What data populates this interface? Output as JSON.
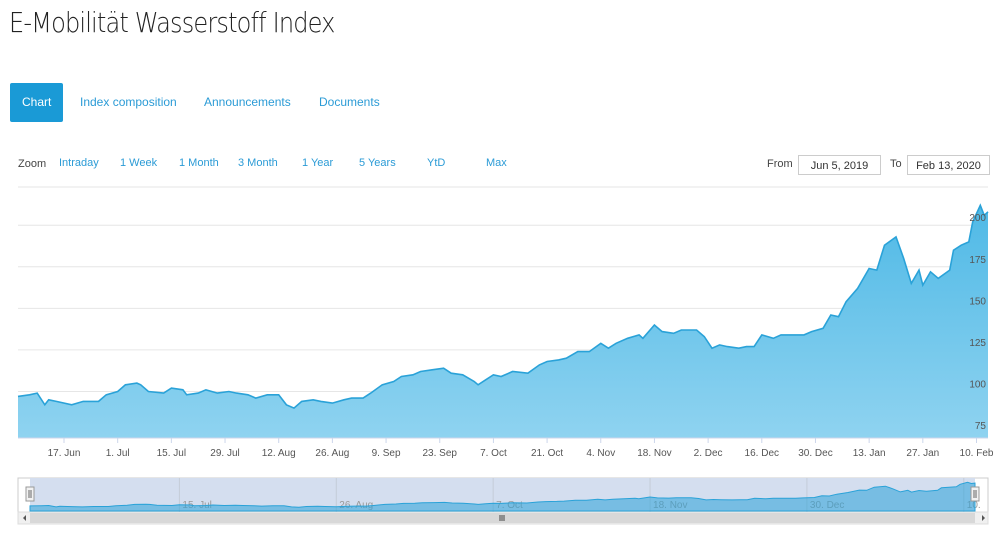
{
  "header": {
    "title": "E-Mobilität Wasserstoff Index"
  },
  "tabs": {
    "items": [
      "Chart",
      "Index composition",
      "Announcements",
      "Documents"
    ],
    "active": 0
  },
  "zoom": {
    "label": "Zoom",
    "options": [
      "Intraday",
      "1 Week",
      "1 Month",
      "3 Month",
      "1 Year",
      "5 Years",
      "YtD",
      "Max"
    ]
  },
  "range": {
    "from_label": "From",
    "from": "Jun 5, 2019",
    "to_label": "To",
    "to": "Feb 13, 2020"
  },
  "chart_data": {
    "type": "area",
    "color": "#2aa2d8",
    "grid": true,
    "x": [
      "2019-06-05",
      "2019-06-08",
      "2019-06-10",
      "2019-06-12",
      "2019-06-13",
      "2019-06-15",
      "2019-06-19",
      "2019-06-22",
      "2019-06-26",
      "2019-06-28",
      "2019-07-01",
      "2019-07-03",
      "2019-07-06",
      "2019-07-07",
      "2019-07-09",
      "2019-07-13",
      "2019-07-15",
      "2019-07-18",
      "2019-07-19",
      "2019-07-22",
      "2019-07-24",
      "2019-07-27",
      "2019-07-30",
      "2019-08-01",
      "2019-08-04",
      "2019-08-06",
      "2019-08-09",
      "2019-08-12",
      "2019-08-14",
      "2019-08-16",
      "2019-08-18",
      "2019-08-21",
      "2019-08-23",
      "2019-08-26",
      "2019-08-29",
      "2019-08-31",
      "2019-09-03",
      "2019-09-05",
      "2019-09-08",
      "2019-09-11",
      "2019-09-13",
      "2019-09-16",
      "2019-09-18",
      "2019-09-21",
      "2019-09-24",
      "2019-09-26",
      "2019-09-29",
      "2019-10-02",
      "2019-10-03",
      "2019-10-05",
      "2019-10-07",
      "2019-10-09",
      "2019-10-12",
      "2019-10-16",
      "2019-10-19",
      "2019-10-21",
      "2019-10-24",
      "2019-10-26",
      "2019-10-29",
      "2019-11-01",
      "2019-11-04",
      "2019-11-06",
      "2019-11-08",
      "2019-11-11",
      "2019-11-14",
      "2019-11-15",
      "2019-11-18",
      "2019-11-20",
      "2019-11-23",
      "2019-11-25",
      "2019-11-29",
      "2019-12-01",
      "2019-12-03",
      "2019-12-05",
      "2019-12-07",
      "2019-12-10",
      "2019-12-12",
      "2019-12-14",
      "2019-12-16",
      "2019-12-19",
      "2019-12-21",
      "2019-12-24",
      "2019-12-27",
      "2019-12-29",
      "2020-01-01",
      "2020-01-03",
      "2020-01-05",
      "2020-01-07",
      "2020-01-10",
      "2020-01-13",
      "2020-01-15",
      "2020-01-17",
      "2020-01-20",
      "2020-01-22",
      "2020-01-24",
      "2020-01-26",
      "2020-01-27",
      "2020-01-29",
      "2020-01-31",
      "2020-02-03",
      "2020-02-04",
      "2020-02-06",
      "2020-02-08",
      "2020-02-09",
      "2020-02-11",
      "2020-02-12",
      "2020-02-13"
    ],
    "values": [
      97,
      98,
      99,
      92,
      95,
      94,
      92,
      94,
      94,
      98,
      100,
      104,
      105,
      104,
      100,
      99,
      102,
      101,
      98,
      99,
      101,
      99,
      100,
      99,
      98,
      96,
      98,
      98,
      92,
      90,
      94,
      95,
      94,
      93,
      95,
      96,
      96,
      99,
      104,
      106,
      109,
      110,
      112,
      113,
      114,
      111,
      110,
      106,
      104,
      107,
      110,
      109,
      112,
      111,
      116,
      118,
      119,
      120,
      124,
      124,
      129,
      126,
      129,
      132,
      134,
      132,
      140,
      136,
      135,
      137,
      137,
      133,
      126,
      128,
      127,
      126,
      127,
      127,
      134,
      132,
      134,
      134,
      134,
      136,
      138,
      146,
      145,
      154,
      162,
      174,
      173,
      188,
      193,
      180,
      165,
      173,
      164,
      172,
      168,
      173,
      185,
      188,
      190,
      202,
      212,
      206,
      208
    ],
    "xlim": [
      "2019-06-05",
      "2020-02-13"
    ],
    "xticks": [
      {
        "value": "2019-06-17",
        "label": "17. Jun"
      },
      {
        "value": "2019-07-01",
        "label": "1. Jul"
      },
      {
        "value": "2019-07-15",
        "label": "15. Jul"
      },
      {
        "value": "2019-07-29",
        "label": "29. Jul"
      },
      {
        "value": "2019-08-12",
        "label": "12. Aug"
      },
      {
        "value": "2019-08-26",
        "label": "26. Aug"
      },
      {
        "value": "2019-09-09",
        "label": "9. Sep"
      },
      {
        "value": "2019-09-23",
        "label": "23. Sep"
      },
      {
        "value": "2019-10-07",
        "label": "7. Oct"
      },
      {
        "value": "2019-10-21",
        "label": "21. Oct"
      },
      {
        "value": "2019-11-04",
        "label": "4. Nov"
      },
      {
        "value": "2019-11-18",
        "label": "18. Nov"
      },
      {
        "value": "2019-12-02",
        "label": "2. Dec"
      },
      {
        "value": "2019-12-16",
        "label": "16. Dec"
      },
      {
        "value": "2019-12-30",
        "label": "30. Dec"
      },
      {
        "value": "2020-01-13",
        "label": "13. Jan"
      },
      {
        "value": "2020-01-27",
        "label": "27. Jan"
      },
      {
        "value": "2020-02-10",
        "label": "10. Feb"
      }
    ],
    "ylim": [
      72,
      223
    ],
    "yticks": [
      75,
      100,
      125,
      150,
      175,
      200
    ],
    "navigator_xticks": [
      {
        "value": "2019-07-15",
        "label": "15. Jul"
      },
      {
        "value": "2019-08-26",
        "label": "26. Aug"
      },
      {
        "value": "2019-10-07",
        "label": "7. Oct"
      },
      {
        "value": "2019-11-18",
        "label": "18. Nov"
      },
      {
        "value": "2019-12-30",
        "label": "30. Dec"
      },
      {
        "value": "2020-02-10",
        "label": "10."
      }
    ]
  }
}
